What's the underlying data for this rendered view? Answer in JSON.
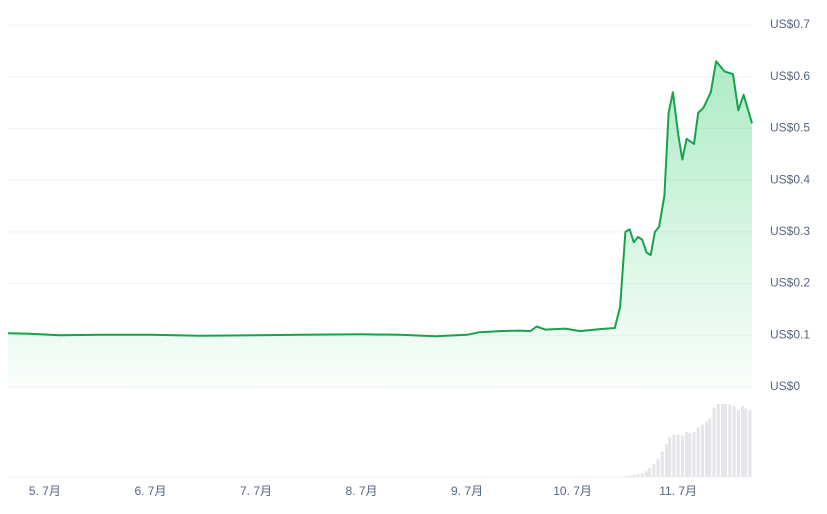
{
  "chart_data": [
    {
      "type": "line",
      "color": "#16a34a",
      "grid": true,
      "x": [
        4.65,
        4.86,
        5.14,
        5.52,
        6.0,
        6.47,
        7.0,
        7.42,
        8.0,
        8.36,
        8.7,
        9.0,
        9.12,
        9.31,
        9.5,
        9.6,
        9.66,
        9.74,
        9.93,
        10.07,
        10.26,
        10.4,
        10.45,
        10.5,
        10.54,
        10.58,
        10.62,
        10.66,
        10.7,
        10.74,
        10.78,
        10.82,
        10.87,
        10.91,
        10.95,
        11.0,
        11.04,
        11.08,
        11.15,
        11.19,
        11.24,
        11.31,
        11.36,
        11.44,
        11.52,
        11.57,
        11.62,
        11.7
      ],
      "values": [
        0.104,
        0.103,
        0.1,
        0.101,
        0.101,
        0.099,
        0.1,
        0.101,
        0.102,
        0.101,
        0.098,
        0.101,
        0.106,
        0.108,
        0.109,
        0.108,
        0.117,
        0.111,
        0.113,
        0.108,
        0.112,
        0.114,
        0.155,
        0.3,
        0.305,
        0.28,
        0.29,
        0.285,
        0.26,
        0.255,
        0.3,
        0.31,
        0.37,
        0.53,
        0.57,
        0.49,
        0.44,
        0.48,
        0.47,
        0.53,
        0.54,
        0.57,
        0.63,
        0.61,
        0.605,
        0.535,
        0.565,
        0.51
      ],
      "xlim": [
        4.65,
        11.7
      ],
      "ylim": [
        0,
        0.7
      ],
      "yticks": [
        {
          "value": 0,
          "label": "US$0"
        },
        {
          "value": 0.1,
          "label": "US$0.1"
        },
        {
          "value": 0.2,
          "label": "US$0.2"
        },
        {
          "value": 0.3,
          "label": "US$0.3"
        },
        {
          "value": 0.4,
          "label": "US$0.4"
        },
        {
          "value": 0.5,
          "label": "US$0.5"
        },
        {
          "value": 0.6,
          "label": "US$0.6"
        },
        {
          "value": 0.7,
          "label": "US$0.7"
        }
      ],
      "xticks": [
        {
          "value": 5,
          "label": "5. 7月"
        },
        {
          "value": 6,
          "label": "6. 7月"
        },
        {
          "value": 7,
          "label": "7. 7月"
        },
        {
          "value": 8,
          "label": "8. 7月"
        },
        {
          "value": 9,
          "label": "9. 7月"
        },
        {
          "value": 10,
          "label": "10. 7月"
        },
        {
          "value": 11,
          "label": "11. 7月"
        }
      ]
    },
    {
      "type": "bar",
      "color": "#e3e5e8",
      "ylim": [
        0,
        100
      ],
      "x": [
        10.51,
        10.55,
        10.58,
        10.62,
        10.66,
        10.7,
        10.73,
        10.77,
        10.81,
        10.85,
        10.89,
        10.92,
        10.96,
        11.0,
        11.04,
        11.08,
        11.11,
        11.15,
        11.19,
        11.23,
        11.27,
        11.3,
        11.34,
        11.38,
        11.42,
        11.45,
        11.49,
        11.53,
        11.57,
        11.61,
        11.64,
        11.68
      ],
      "values": [
        1,
        2,
        3,
        4,
        5,
        8,
        12,
        18,
        25,
        35,
        45,
        55,
        58,
        58,
        57,
        62,
        60,
        62,
        68,
        72,
        76,
        80,
        95,
        100,
        100,
        100,
        99,
        97,
        92,
        97,
        94,
        92
      ]
    }
  ]
}
